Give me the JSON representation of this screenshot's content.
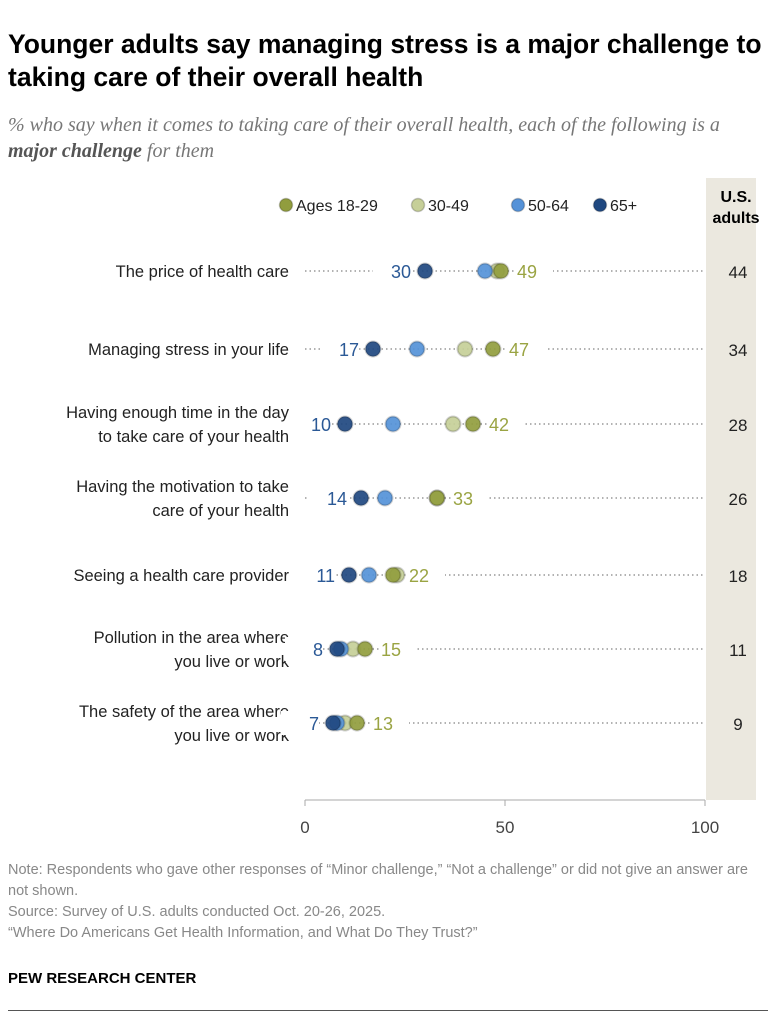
{
  "title": "Younger adults say managing stress is a major challenge to taking care of their overall health",
  "subtitle_pre": "% who say when it comes to taking care of their overall health, each of the following is a ",
  "subtitle_em": "major challenge",
  "subtitle_post": " for them",
  "notes": [
    "Note: Respondents who gave other responses of “Minor challenge,” “Not a challenge” or did not give an answer are not shown.",
    "Source: Survey of U.S. adults conducted Oct. 20-26, 2025.",
    "“Where Do Americans Get Health Information, and What Do They Trust?”"
  ],
  "brand": "PEW RESEARCH CENTER",
  "chart_data": {
    "type": "dot",
    "xlim": [
      0,
      100
    ],
    "xticks": [
      0,
      50,
      100
    ],
    "grid": false,
    "legend_placement": "top",
    "total_header": "U.S. adults",
    "categories": [
      "The price of health care",
      "Managing stress in your life",
      "Having enough time in the day to take care of your health",
      "Having the motivation to take care of your health",
      "Seeing a health care provider",
      "Pollution in the area where you live or work",
      "The safety of the area where you live or work"
    ],
    "category_lines": [
      [
        "The price of health care"
      ],
      [
        "Managing stress in your life"
      ],
      [
        "Having enough time in the day",
        "to take care of your health"
      ],
      [
        "Having the motivation to take",
        "care of your health"
      ],
      [
        "Seeing a health care provider"
      ],
      [
        "Pollution in the area where",
        "you live or work"
      ],
      [
        "The safety of the area where",
        "you live or work"
      ]
    ],
    "series": [
      {
        "name": "Ages 18-29",
        "color": "#919d3e",
        "label_color": "#9aa443",
        "values": [
          49,
          47,
          42,
          33,
          22,
          15,
          13
        ],
        "labeled": true
      },
      {
        "name": "30-49",
        "color": "#c6cf98",
        "values": [
          48,
          40,
          37,
          33,
          23,
          12,
          10
        ],
        "labeled": false
      },
      {
        "name": "50-64",
        "color": "#5592d8",
        "values": [
          45,
          28,
          22,
          20,
          16,
          9,
          8
        ],
        "labeled": false
      },
      {
        "name": "65+",
        "color": "#1f4880",
        "label_color": "#2b5996",
        "values": [
          30,
          17,
          10,
          14,
          11,
          8,
          7
        ],
        "labeled": true
      }
    ],
    "total": [
      44,
      34,
      28,
      26,
      18,
      11,
      9
    ],
    "colors": {
      "total_column_bg": "#ebe8df"
    }
  }
}
